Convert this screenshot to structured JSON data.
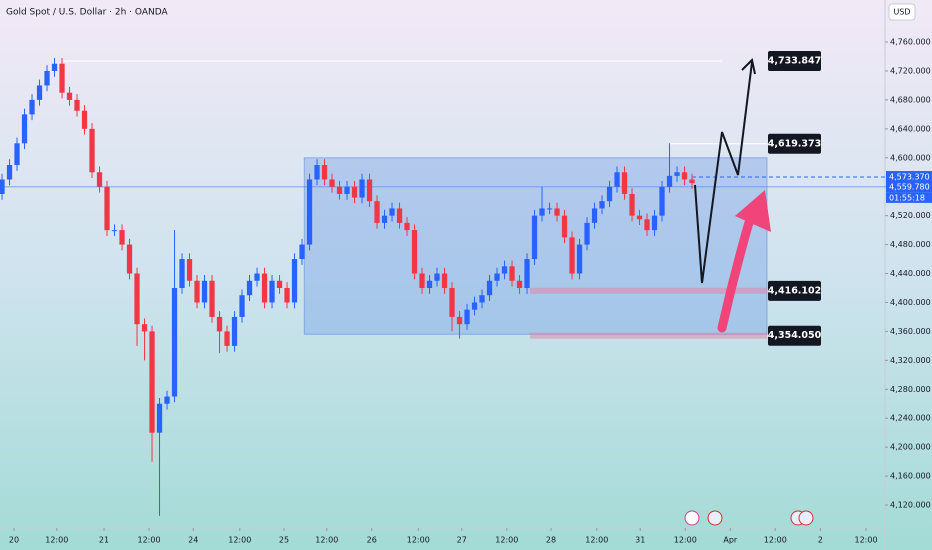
{
  "chart_data": {
    "type": "candlestick",
    "title": "Gold Spot / U.S. Dollar · 2h · OANDA",
    "currency": "USD",
    "up_color": "#2962ff",
    "down_color": "#f23645",
    "xlim": [
      -0.27,
      117.73
    ],
    "ylim": [
      4099.3,
      4818.1
    ],
    "yticks": [
      {
        "value": 4120,
        "label": "4,120.000"
      },
      {
        "value": 4160,
        "label": "4,160.000"
      },
      {
        "value": 4200,
        "label": "4,200.000"
      },
      {
        "value": 4240,
        "label": "4,240.000"
      },
      {
        "value": 4280,
        "label": "4,280.000"
      },
      {
        "value": 4320,
        "label": "4,320.000"
      },
      {
        "value": 4360,
        "label": "4,360.000"
      },
      {
        "value": 4400,
        "label": "4,400.000"
      },
      {
        "value": 4440,
        "label": "4,440.000"
      },
      {
        "value": 4480,
        "label": "4,480.000"
      },
      {
        "value": 4520,
        "label": "4,520.000"
      },
      {
        "value": 4560,
        "label": "4,560.000"
      },
      {
        "value": 4600,
        "label": "4,600.000"
      },
      {
        "value": 4640,
        "label": "4,640.000"
      },
      {
        "value": 4680,
        "label": "4,680.000"
      },
      {
        "value": 4720,
        "label": "4,720.000"
      },
      {
        "value": 4760,
        "label": "4,760.000"
      }
    ],
    "xticks": [
      {
        "value": 1.6,
        "label": "20"
      },
      {
        "value": 7.3,
        "label": "12:00"
      },
      {
        "value": 13.6,
        "label": "21"
      },
      {
        "value": 19.6,
        "label": "12:00"
      },
      {
        "value": 25.5,
        "label": "24"
      },
      {
        "value": 31.7,
        "label": "12:00"
      },
      {
        "value": 37.6,
        "label": "25"
      },
      {
        "value": 43.3,
        "label": "12:00"
      },
      {
        "value": 49.3,
        "label": "26"
      },
      {
        "value": 55.5,
        "label": "12:00"
      },
      {
        "value": 61.3,
        "label": "27"
      },
      {
        "value": 67.3,
        "label": "12:00"
      },
      {
        "value": 73.2,
        "label": "28"
      },
      {
        "value": 79.3,
        "label": "12:00"
      },
      {
        "value": 85.1,
        "label": "31"
      },
      {
        "value": 91.1,
        "label": "12:00"
      },
      {
        "value": 97.1,
        "label": "Apr"
      },
      {
        "value": 103.1,
        "label": "12:00"
      },
      {
        "value": 109.1,
        "label": "2"
      },
      {
        "value": 115.2,
        "label": "12:00"
      }
    ],
    "open": [
      4550,
      4570,
      4590,
      4620,
      4660,
      4680,
      4700,
      4720,
      4730,
      4690,
      4680,
      4665,
      4640,
      4580,
      4560,
      4500,
      4500,
      4480,
      4440,
      4370,
      4360,
      4220,
      4260,
      4270,
      4420,
      4460,
      4430,
      4400,
      4430,
      4380,
      4360,
      4340,
      4380,
      4410,
      4430,
      4440,
      4400,
      4430,
      4420,
      4400,
      4460,
      4480,
      4570,
      4590,
      4570,
      4560,
      4550,
      4560,
      4545,
      4570,
      4540,
      4510,
      4520,
      4530,
      4510,
      4500,
      4440,
      4420,
      4430,
      4440,
      4420,
      4380,
      4370,
      4390,
      4400,
      4410,
      4430,
      4440,
      4450,
      4430,
      4420,
      4460,
      4520,
      4530,
      4530,
      4520,
      4490,
      4440,
      4480,
      4510,
      4530,
      4540,
      4560,
      4580,
      4550,
      4520,
      4515,
      4500,
      4520,
      4560,
      4575,
      4580,
      4570
    ],
    "high": [
      4578,
      4598,
      4628,
      4668,
      4688,
      4708,
      4728,
      4738,
      4738,
      4698,
      4688,
      4673,
      4648,
      4588,
      4568,
      4508,
      4508,
      4488,
      4448,
      4378,
      4368,
      4268,
      4278,
      4500,
      4468,
      4468,
      4438,
      4438,
      4438,
      4388,
      4368,
      4388,
      4418,
      4438,
      4448,
      4448,
      4438,
      4438,
      4428,
      4468,
      4488,
      4578,
      4598,
      4598,
      4578,
      4568,
      4568,
      4568,
      4578,
      4578,
      4548,
      4528,
      4538,
      4538,
      4518,
      4508,
      4448,
      4438,
      4448,
      4448,
      4428,
      4388,
      4398,
      4408,
      4418,
      4438,
      4448,
      4458,
      4458,
      4438,
      4468,
      4528,
      4560,
      4538,
      4538,
      4528,
      4498,
      4488,
      4518,
      4538,
      4548,
      4568,
      4588,
      4588,
      4558,
      4528,
      4523,
      4528,
      4568,
      4620,
      4588,
      4588,
      4578
    ],
    "low": [
      4542,
      4562,
      4582,
      4612,
      4652,
      4672,
      4692,
      4712,
      4682,
      4672,
      4657,
      4632,
      4572,
      4552,
      4492,
      4492,
      4472,
      4432,
      4340,
      4320,
      4180,
      4105,
      4252,
      4262,
      4412,
      4422,
      4392,
      4392,
      4372,
      4330,
      4332,
      4332,
      4372,
      4402,
      4422,
      4392,
      4392,
      4412,
      4392,
      4392,
      4452,
      4472,
      4562,
      4562,
      4552,
      4542,
      4542,
      4537,
      4537,
      4532,
      4502,
      4502,
      4512,
      4502,
      4492,
      4432,
      4412,
      4412,
      4422,
      4412,
      4360,
      4350,
      4362,
      4382,
      4392,
      4402,
      4422,
      4432,
      4422,
      4412,
      4412,
      4452,
      4512,
      4522,
      4512,
      4482,
      4432,
      4432,
      4472,
      4502,
      4522,
      4532,
      4552,
      4542,
      4512,
      4507,
      4492,
      4492,
      4512,
      4552,
      4567,
      4562,
      4557
    ],
    "close": [
      4570,
      4590,
      4620,
      4660,
      4680,
      4700,
      4720,
      4730,
      4690,
      4680,
      4665,
      4640,
      4580,
      4560,
      4500,
      4500,
      4480,
      4440,
      4370,
      4360,
      4220,
      4260,
      4270,
      4420,
      4460,
      4430,
      4400,
      4430,
      4380,
      4360,
      4340,
      4380,
      4410,
      4430,
      4440,
      4400,
      4430,
      4420,
      4400,
      4460,
      4480,
      4570,
      4590,
      4570,
      4560,
      4550,
      4560,
      4545,
      4570,
      4540,
      4510,
      4520,
      4530,
      4510,
      4500,
      4440,
      4420,
      4430,
      4440,
      4420,
      4380,
      4370,
      4390,
      4400,
      4410,
      4430,
      4440,
      4450,
      4430,
      4420,
      4460,
      4520,
      4530,
      4530,
      4520,
      4490,
      4440,
      4480,
      4510,
      4530,
      4540,
      4560,
      4580,
      4550,
      4520,
      4515,
      4500,
      4520,
      4560,
      4575,
      4580,
      4570,
      4565
    ],
    "zone": {
      "top": 4600,
      "bottom": 4356
    },
    "annotations": [
      {
        "value": 4733.847,
        "label": "4,733.847"
      },
      {
        "value": 4619.373,
        "label": "4,619.373"
      },
      {
        "value": 4416.102,
        "label": "4,416.102"
      },
      {
        "value": 4354.05,
        "label": "4,354.050"
      }
    ],
    "price_tags": [
      {
        "value": 4573.37,
        "label": "4,573.370"
      },
      {
        "value": 4559.78,
        "label": "4,559.780"
      }
    ],
    "countdown": "01:55:18"
  }
}
